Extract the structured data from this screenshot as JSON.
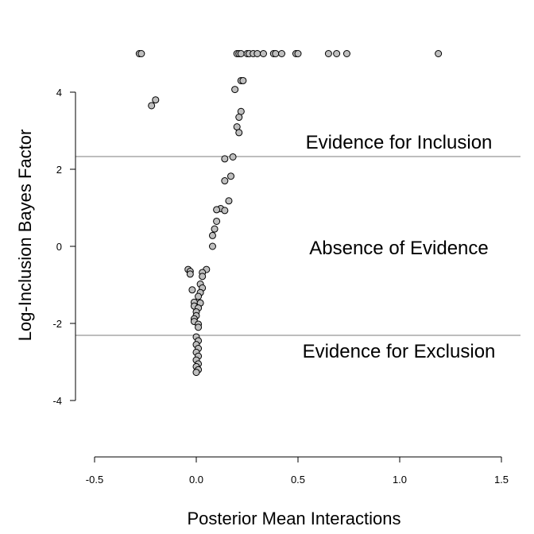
{
  "chart_data": {
    "type": "scatter",
    "title": "",
    "xlabel": "Posterior Mean Interactions",
    "ylabel": "Log-Inclusion Bayes Factor",
    "xlim": [
      -0.5,
      1.5
    ],
    "ylim": [
      -4,
      5
    ],
    "x_ticks": [
      "-0.5",
      "0.0",
      "0.5",
      "1.0",
      "1.5"
    ],
    "y_ticks": [
      "-4",
      "-2",
      "0",
      "2",
      "4"
    ],
    "grid": false,
    "reference_lines": [
      2.3,
      -2.3
    ],
    "region_labels": {
      "inclusion": "Evidence for Inclusion",
      "absence": "Absence of Evidence",
      "exclusion": "Evidence for Exclusion"
    },
    "point_fill": "#bfbfbf",
    "point_stroke": "#000000",
    "reference_line_color": "#bdbdbd",
    "points": [
      [
        -0.28,
        5.0
      ],
      [
        -0.27,
        5.0
      ],
      [
        0.2,
        5.0
      ],
      [
        0.21,
        5.0
      ],
      [
        0.22,
        5.0
      ],
      [
        0.25,
        5.0
      ],
      [
        0.26,
        5.0
      ],
      [
        0.28,
        5.0
      ],
      [
        0.3,
        5.0
      ],
      [
        0.33,
        5.0
      ],
      [
        0.38,
        5.0
      ],
      [
        0.39,
        5.0
      ],
      [
        0.42,
        5.0
      ],
      [
        0.49,
        5.0
      ],
      [
        0.5,
        5.0
      ],
      [
        0.65,
        5.0
      ],
      [
        0.69,
        5.0
      ],
      [
        0.74,
        5.0
      ],
      [
        1.19,
        5.0
      ],
      [
        -0.2,
        3.8
      ],
      [
        -0.22,
        3.65
      ],
      [
        0.22,
        4.3
      ],
      [
        0.23,
        4.3
      ],
      [
        0.19,
        4.07
      ],
      [
        0.22,
        3.5
      ],
      [
        0.21,
        3.35
      ],
      [
        0.2,
        3.1
      ],
      [
        0.21,
        2.95
      ],
      [
        0.18,
        2.32
      ],
      [
        0.14,
        2.27
      ],
      [
        0.17,
        1.82
      ],
      [
        0.14,
        1.7
      ],
      [
        0.16,
        1.18
      ],
      [
        0.12,
        0.98
      ],
      [
        0.1,
        0.95
      ],
      [
        0.14,
        0.93
      ],
      [
        0.1,
        0.65
      ],
      [
        0.09,
        0.45
      ],
      [
        0.08,
        0.28
      ],
      [
        0.08,
        0.0
      ],
      [
        0.05,
        -0.6
      ],
      [
        0.03,
        -0.68
      ],
      [
        0.03,
        -0.78
      ],
      [
        -0.04,
        -0.6
      ],
      [
        -0.03,
        -0.65
      ],
      [
        -0.03,
        -0.72
      ],
      [
        0.02,
        -0.98
      ],
      [
        0.03,
        -1.08
      ],
      [
        0.02,
        -1.2
      ],
      [
        0.01,
        -1.3
      ],
      [
        -0.02,
        -1.13
      ],
      [
        -0.01,
        -1.45
      ],
      [
        -0.01,
        -1.55
      ],
      [
        0.02,
        -1.47
      ],
      [
        0.01,
        -1.6
      ],
      [
        0.0,
        -1.7
      ],
      [
        0.0,
        -1.8
      ],
      [
        -0.01,
        -1.88
      ],
      [
        -0.01,
        -1.95
      ],
      [
        0.01,
        -2.02
      ],
      [
        0.01,
        -2.1
      ],
      [
        0.0,
        -2.35
      ],
      [
        0.01,
        -2.45
      ],
      [
        0.0,
        -2.55
      ],
      [
        0.01,
        -2.65
      ],
      [
        0.0,
        -2.75
      ],
      [
        0.01,
        -2.85
      ],
      [
        0.0,
        -2.95
      ],
      [
        0.01,
        -3.05
      ],
      [
        0.0,
        -3.12
      ],
      [
        0.01,
        -3.2
      ],
      [
        0.0,
        -3.27
      ]
    ]
  }
}
